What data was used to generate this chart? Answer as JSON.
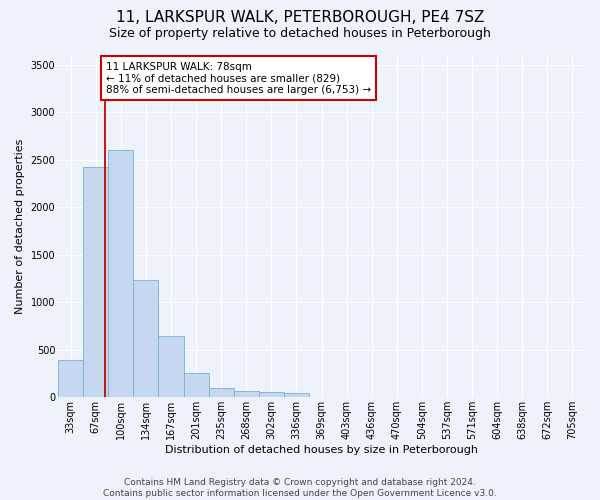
{
  "title": "11, LARKSPUR WALK, PETERBOROUGH, PE4 7SZ",
  "subtitle": "Size of property relative to detached houses in Peterborough",
  "xlabel": "Distribution of detached houses by size in Peterborough",
  "ylabel": "Number of detached properties",
  "categories": [
    "33sqm",
    "67sqm",
    "100sqm",
    "134sqm",
    "167sqm",
    "201sqm",
    "235sqm",
    "268sqm",
    "302sqm",
    "336sqm",
    "369sqm",
    "403sqm",
    "436sqm",
    "470sqm",
    "504sqm",
    "537sqm",
    "571sqm",
    "604sqm",
    "638sqm",
    "672sqm",
    "705sqm"
  ],
  "values": [
    390,
    2420,
    2600,
    1230,
    640,
    255,
    100,
    65,
    60,
    50,
    0,
    0,
    0,
    0,
    0,
    0,
    0,
    0,
    0,
    0,
    0
  ],
  "bar_color": "#c5d8f0",
  "bar_edge_color": "#7aafd4",
  "ylim": [
    0,
    3600
  ],
  "yticks": [
    0,
    500,
    1000,
    1500,
    2000,
    2500,
    3000,
    3500
  ],
  "property_line_x": 1.35,
  "annotation_text": "11 LARKSPUR WALK: 78sqm\n← 11% of detached houses are smaller (829)\n88% of semi-detached houses are larger (6,753) →",
  "annotation_box_color": "#ffffff",
  "annotation_box_edge": "#cc0000",
  "vline_color": "#cc0000",
  "footer_line1": "Contains HM Land Registry data © Crown copyright and database right 2024.",
  "footer_line2": "Contains public sector information licensed under the Open Government Licence v3.0.",
  "background_color": "#eef2fb",
  "grid_color": "#ffffff",
  "title_fontsize": 11,
  "subtitle_fontsize": 9,
  "axis_label_fontsize": 8,
  "tick_fontsize": 7,
  "annotation_fontsize": 7.5,
  "footer_fontsize": 6.5
}
